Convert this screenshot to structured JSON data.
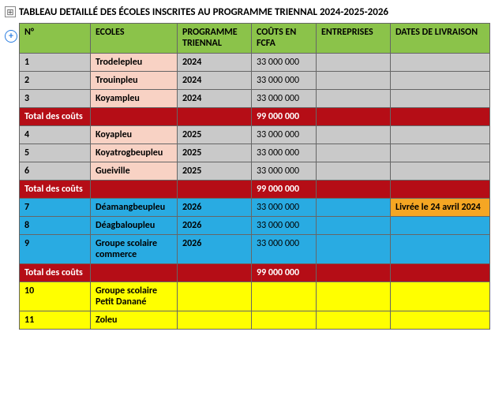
{
  "title": "TABLEAU DETAILLÉ DES ÉCOLES INSCRITES AU PROGRAMME TRIENNAL 2024-2025-2026",
  "columns": {
    "num": "N°",
    "ecoles": "ECOLES",
    "programme": "PROGRAMME TRIENNAL",
    "couts": "COÛTS EN FCFA",
    "entreprises": "ENTREPRISES",
    "dates": "DATES DE LIVRAISON"
  },
  "group1": {
    "rows": [
      {
        "num": "1",
        "ecole": "Trodelepleu",
        "prog": "2024",
        "cout": "33 000 000",
        "ent": "",
        "date": ""
      },
      {
        "num": "2",
        "ecole": "Trouinpleu",
        "prog": "2024",
        "cout": "33 000 000",
        "ent": "",
        "date": ""
      },
      {
        "num": "3",
        "ecole": "Koyampleu",
        "prog": "2024",
        "cout": "33 000 000",
        "ent": "",
        "date": ""
      }
    ],
    "total_label": "Total des coûts",
    "total": "99 000 000"
  },
  "group2": {
    "rows": [
      {
        "num": "4",
        "ecole": "Koyapleu",
        "prog": "2025",
        "cout": "33 000 000",
        "ent": "",
        "date": ""
      },
      {
        "num": "5",
        "ecole": "Koyatrogbeupleu",
        "prog": "2025",
        "cout": "33 000 000",
        "ent": "",
        "date": ""
      },
      {
        "num": "6",
        "ecole": "Gueiville",
        "prog": "2025",
        "cout": "33 000 000",
        "ent": "",
        "date": ""
      }
    ],
    "total_label": "Total des coûts",
    "total": "99 000 000"
  },
  "group3": {
    "rows": [
      {
        "num": "7",
        "ecole": "Déamangbeupleu",
        "prog": "2026",
        "cout": "33 000 000",
        "ent": "",
        "date": "Livrée le 24 avril 2024"
      },
      {
        "num": "8",
        "ecole": "Déagbaloupleu",
        "prog": "2026",
        "cout": "33 000 000",
        "ent": "",
        "date": ""
      },
      {
        "num": "9",
        "ecole": "Groupe scolaire commerce",
        "prog": "2026",
        "cout": "33 000 000",
        "ent": "",
        "date": ""
      }
    ],
    "total_label": "Total des coûts",
    "total": "99 000 000"
  },
  "group4": {
    "rows": [
      {
        "num": "10",
        "ecole": "Groupe scolaire Petit Danané",
        "prog": "",
        "cout": "",
        "ent": "",
        "date": ""
      },
      {
        "num": "11",
        "ecole": "Zoleu",
        "prog": "",
        "cout": "",
        "ent": "",
        "date": ""
      }
    ]
  },
  "colors": {
    "header": "#8bc34a",
    "grey": "#c9c9c9",
    "pink": "#f8d2c4",
    "total": "#b50d16",
    "blue": "#29abe2",
    "orange": "#f5a623",
    "yellow": "#ffff00",
    "border": "#666666",
    "text": "#000000",
    "total_text": "#ffffff"
  }
}
